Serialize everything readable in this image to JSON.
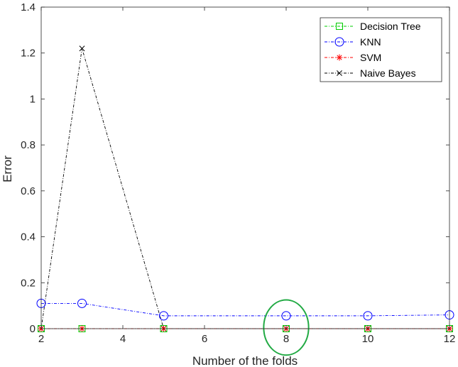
{
  "chart_data": {
    "type": "line",
    "title": "",
    "xlabel": "Number of the folds",
    "ylabel": "Error",
    "xlim": [
      2,
      12
    ],
    "ylim": [
      0,
      1.4
    ],
    "xticks": [
      2,
      4,
      6,
      8,
      10,
      12
    ],
    "yticks": [
      0,
      0.2,
      0.4,
      0.6,
      0.8,
      1,
      1.2,
      1.4
    ],
    "xtick_labels": [
      "2",
      "4",
      "6",
      "8",
      "10",
      "12"
    ],
    "ytick_labels": [
      "0",
      "0.2",
      "0.4",
      "0.6",
      "0.8",
      "1",
      "1.2",
      "1.4"
    ],
    "grid": false,
    "legend_position": "top-right",
    "x": [
      2,
      3,
      5,
      8,
      10,
      12
    ],
    "series": [
      {
        "name": "Decision Tree",
        "values": [
          0,
          0,
          0,
          0,
          0,
          0
        ],
        "color": "#00cc00",
        "marker": "square",
        "line": "dashdot"
      },
      {
        "name": "KNN",
        "values": [
          0.11,
          0.11,
          0.056,
          0.056,
          0.056,
          0.06
        ],
        "color": "#0000ff",
        "marker": "circle",
        "line": "dashdot"
      },
      {
        "name": "SVM",
        "values": [
          0,
          0,
          0,
          0,
          0,
          0
        ],
        "color": "#ff0000",
        "marker": "asterisk",
        "line": "dashdot"
      },
      {
        "name": "Naive Bayes",
        "values": [
          0,
          1.22,
          0,
          0,
          0,
          0
        ],
        "color": "#000000",
        "marker": "x",
        "line": "dashdot"
      }
    ],
    "annotations": [
      {
        "type": "ellipse",
        "color": "#22aa44",
        "center": [
          8,
          0.005
        ],
        "x_radius": 0.55,
        "y_radius": 0.12
      }
    ]
  }
}
